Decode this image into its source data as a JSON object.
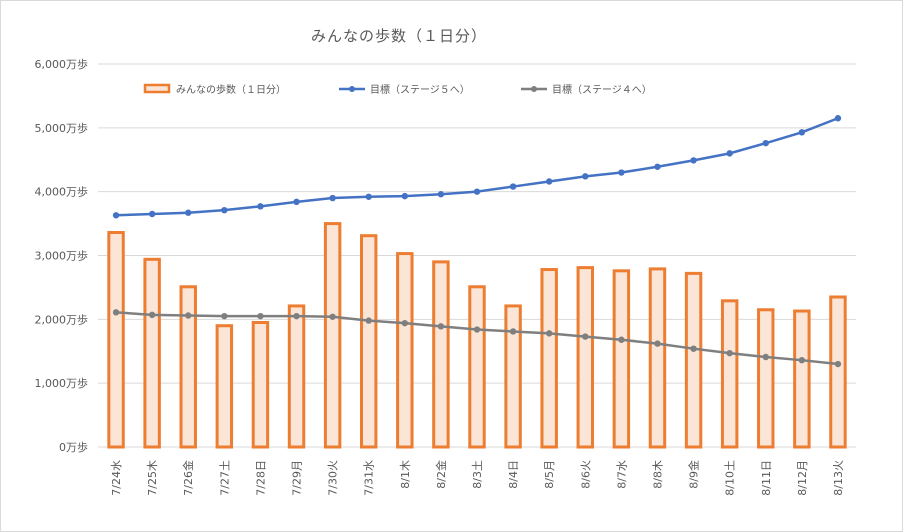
{
  "chart_data": {
    "type": "bar",
    "title": "みんなの歩数（１日分）",
    "xlabel": "",
    "ylabel": "",
    "ylim": [
      0,
      6000
    ],
    "y_ticks": [
      0,
      1000,
      2000,
      3000,
      4000,
      5000,
      6000
    ],
    "y_tick_labels": [
      "0万歩",
      "1,000万歩",
      "2,000万歩",
      "3,000万歩",
      "4,000万歩",
      "5,000万歩",
      "6,000万歩"
    ],
    "grid": true,
    "legend_position": "top",
    "categories": [
      "7/24水",
      "7/25木",
      "7/26金",
      "7/27土",
      "7/28日",
      "7/29月",
      "7/30火",
      "7/31水",
      "8/1木",
      "8/2金",
      "8/3土",
      "8/4日",
      "8/5月",
      "8/6火",
      "8/7水",
      "8/8木",
      "8/9金",
      "8/10土",
      "8/11日",
      "8/12月",
      "8/13火"
    ],
    "series": [
      {
        "name": "みんなの歩数（１日分）",
        "kind": "bar",
        "color": "#ed7d31",
        "fill": "#fbe5d6",
        "values": [
          3360,
          2940,
          2510,
          1900,
          1950,
          2210,
          3500,
          3310,
          3030,
          2900,
          2510,
          2210,
          2780,
          2810,
          2760,
          2790,
          2720,
          2290,
          2150,
          2130,
          2350
        ]
      },
      {
        "name": "目標（ステージ５へ）",
        "kind": "line",
        "color": "#4472c4",
        "values": [
          3630,
          3650,
          3670,
          3710,
          3770,
          3840,
          3900,
          3920,
          3930,
          3960,
          4000,
          4080,
          4160,
          4240,
          4300,
          4390,
          4490,
          4600,
          4760,
          4930,
          5150
        ]
      },
      {
        "name": "目標（ステージ４へ）",
        "kind": "line",
        "color": "#7f7f7f",
        "values": [
          2110,
          2070,
          2060,
          2050,
          2050,
          2050,
          2040,
          1980,
          1940,
          1890,
          1840,
          1810,
          1780,
          1730,
          1680,
          1620,
          1540,
          1470,
          1410,
          1360,
          1300
        ]
      }
    ]
  }
}
